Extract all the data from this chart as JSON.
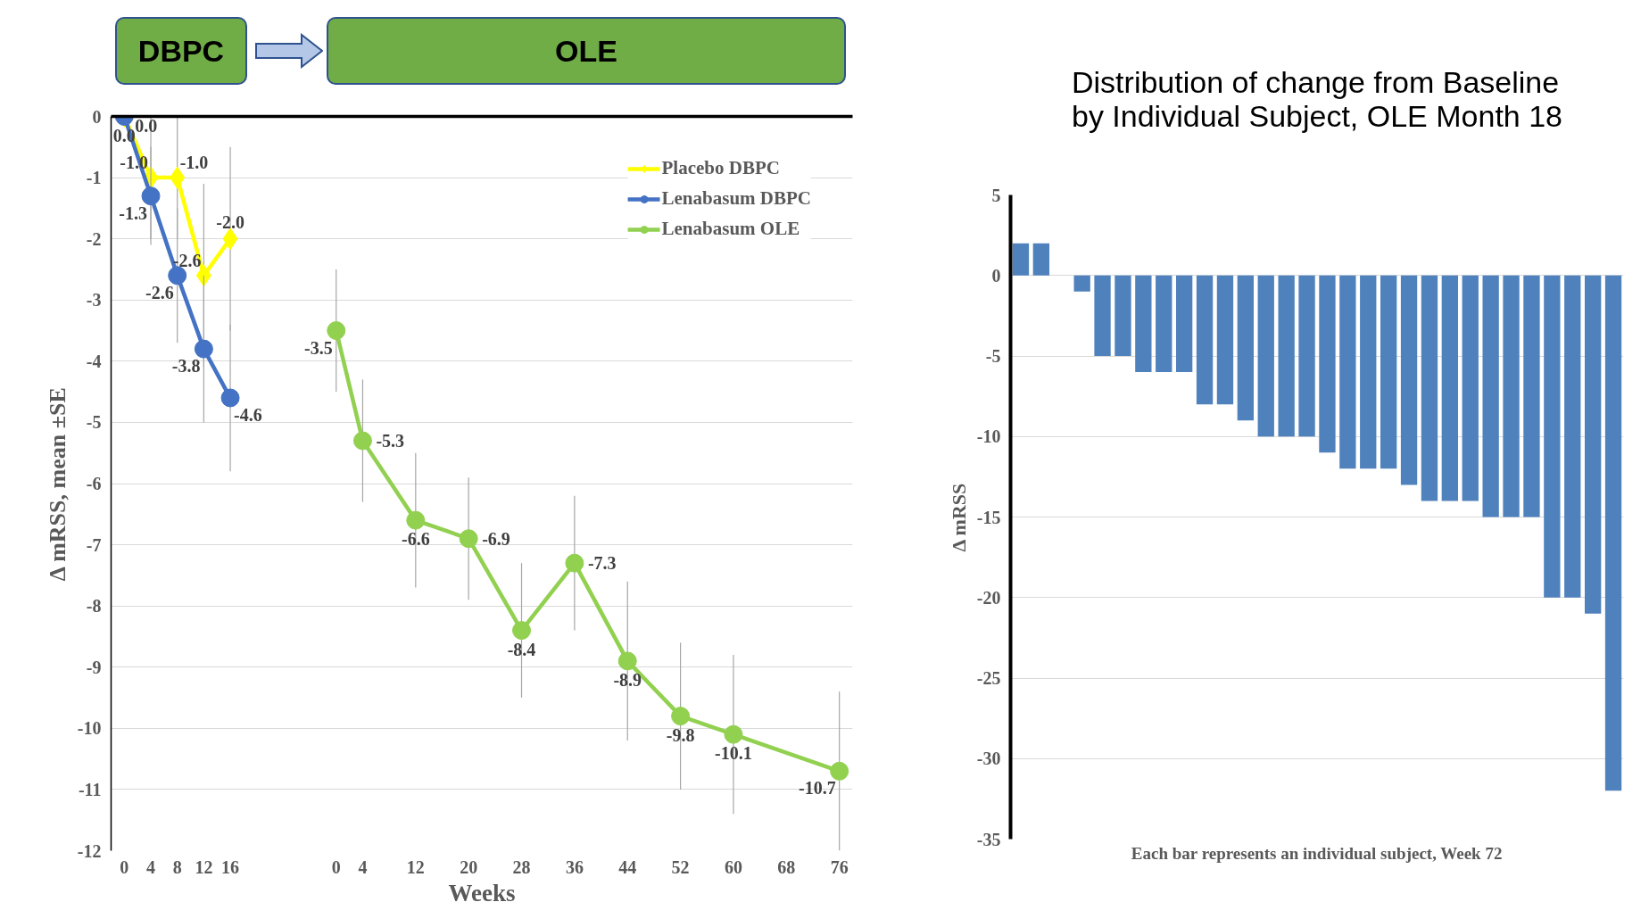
{
  "chart_data": [
    {
      "type": "line",
      "xlabel": "Weeks",
      "ylabel": "Δ mRSS, mean ±SE",
      "ylim": [
        -12,
        0
      ],
      "yticks": [
        -12,
        -11,
        -10,
        -9,
        -8,
        -7,
        -6,
        -5,
        -4,
        -3,
        -2,
        -1,
        0
      ],
      "grid": "y",
      "legend": "top right",
      "annotations": [
        "DBPC",
        "OLE"
      ],
      "categories": [
        "0",
        "4",
        "8",
        "12",
        "16",
        null,
        null,
        null,
        "0",
        "4",
        null,
        "12",
        null,
        "20",
        null,
        "28",
        null,
        "36",
        null,
        "44",
        null,
        "52",
        null,
        "60",
        null,
        "68",
        null,
        "76"
      ],
      "series": [
        {
          "name": "Placebo DBPC",
          "color": "#ffff00",
          "marker": "diamond",
          "values": [
            0.0,
            -1.0,
            -1.0,
            -2.6,
            -2.0,
            null,
            null,
            null,
            null,
            null,
            null,
            null,
            null,
            null,
            null,
            null,
            null,
            null,
            null,
            null,
            null,
            null,
            null,
            null,
            null,
            null,
            null,
            null
          ],
          "value_labels": [
            "0.0",
            "-1.0",
            "-1.0",
            "-2.6",
            "-2.0",
            null,
            null,
            null,
            null,
            null,
            null,
            null,
            null,
            null,
            null,
            null,
            null,
            null,
            null,
            null,
            null,
            null,
            null,
            null,
            null,
            null,
            null,
            null
          ],
          "errors": [
            null,
            1.0,
            1.0,
            1.5,
            1.5,
            null,
            null,
            null,
            null,
            null,
            null,
            null,
            null,
            null,
            null,
            null,
            null,
            null,
            null,
            null,
            null,
            null,
            null,
            null,
            null,
            null,
            null,
            null
          ]
        },
        {
          "name": "Lenabasum DBPC",
          "color": "#4472c4",
          "marker": "circle",
          "values": [
            0.0,
            -1.3,
            -2.6,
            -3.8,
            -4.6,
            null,
            null,
            null,
            null,
            null,
            null,
            null,
            null,
            null,
            null,
            null,
            null,
            null,
            null,
            null,
            null,
            null,
            null,
            null,
            null,
            null,
            null,
            null
          ],
          "value_labels": [
            "0.0",
            "-1.3",
            "-2.6",
            "-3.8",
            "-4.6",
            null,
            null,
            null,
            null,
            null,
            null,
            null,
            null,
            null,
            null,
            null,
            null,
            null,
            null,
            null,
            null,
            null,
            null,
            null,
            null,
            null,
            null,
            null
          ],
          "errors": [
            null,
            0.8,
            1.1,
            1.2,
            1.2,
            null,
            null,
            null,
            null,
            null,
            null,
            null,
            null,
            null,
            null,
            null,
            null,
            null,
            null,
            null,
            null,
            null,
            null,
            null,
            null,
            null,
            null,
            null
          ]
        },
        {
          "name": "Lenabasum OLE",
          "color": "#92d050",
          "marker": "circle",
          "values": [
            null,
            null,
            null,
            null,
            null,
            null,
            null,
            null,
            -3.5,
            -5.3,
            null,
            -6.6,
            null,
            -6.9,
            null,
            -8.4,
            null,
            -7.3,
            null,
            -8.9,
            null,
            -9.8,
            null,
            -10.1,
            null,
            null,
            null,
            -10.7
          ],
          "value_labels": [
            null,
            null,
            null,
            null,
            null,
            null,
            null,
            null,
            "-3.5",
            "-5.3",
            null,
            "-6.6",
            null,
            "-6.9",
            null,
            "-8.4",
            null,
            "-7.3",
            null,
            "-8.9",
            null,
            "-9.8",
            null,
            "-10.1",
            null,
            null,
            null,
            "-10.7"
          ],
          "errors": [
            null,
            null,
            null,
            null,
            null,
            null,
            null,
            null,
            1.0,
            1.0,
            null,
            1.1,
            null,
            1.0,
            null,
            1.1,
            null,
            1.1,
            null,
            1.3,
            null,
            1.2,
            null,
            1.3,
            null,
            null,
            null,
            1.3
          ]
        }
      ]
    },
    {
      "type": "bar",
      "title": "Distribution of change from Baseline by Individual Subject, OLE Month 18",
      "xlabel": "Each bar represents an individual subject, Week 72",
      "ylabel": "Δ mRSS",
      "ylim": [
        -35,
        5
      ],
      "yticks": [
        -35,
        -30,
        -25,
        -20,
        -15,
        -10,
        -5,
        0,
        5
      ],
      "grid": "y",
      "color": "#4f81bd",
      "categories": [
        null,
        null,
        null,
        null,
        null,
        null,
        null,
        null,
        null,
        null,
        null,
        null,
        null,
        null,
        null,
        null,
        null,
        null,
        null,
        null,
        null,
        null,
        null,
        null,
        null,
        null,
        null,
        null,
        null,
        null
      ],
      "values": [
        2,
        2,
        0,
        -1,
        -5,
        -5,
        -6,
        -6,
        -6,
        -8,
        -8,
        -9,
        -10,
        -10,
        -10,
        -11,
        -12,
        -12,
        -12,
        -13,
        -14,
        -14,
        -14,
        -15,
        -15,
        -15,
        -20,
        -20,
        -21,
        -32
      ]
    }
  ]
}
